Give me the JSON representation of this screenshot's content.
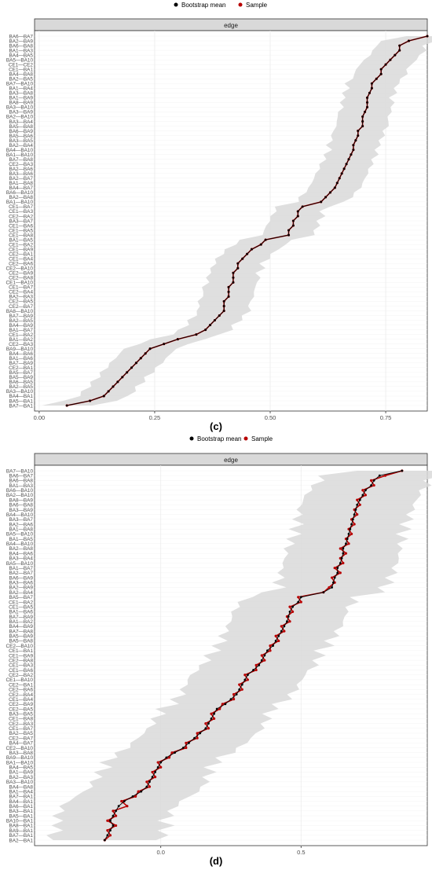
{
  "colors": {
    "bootstrap_mean": "#000000",
    "sample": "#b80000",
    "ribbon": "#d9d9d9",
    "strip": "#d9d9d9",
    "grid_major": "#ebebeb",
    "grid_minor": "#f3f3f3",
    "axis_text": "#4d4d4d"
  },
  "panels": [
    {
      "label": "(c)",
      "legend": {
        "bootstrap_label": "Bootstrap mean",
        "sample_label": "Sample"
      },
      "strip_label": "edge",
      "x_ticks": [
        "0.00",
        "0.25",
        "0.50",
        "0.75"
      ]
    },
    {
      "label": "(d)",
      "legend": {
        "bootstrap_label": "Bootstrap mean",
        "sample_label": "Sample"
      },
      "strip_label": "edge",
      "x_ticks": [
        "0.0",
        "0.5"
      ]
    }
  ],
  "chart_data": [
    {
      "type": "line",
      "facet": "edge",
      "legend_position": "top",
      "xlim": [
        -0.01,
        0.84
      ],
      "x_tick_values": [
        0,
        0.25,
        0.5,
        0.75
      ],
      "y_categories": [
        "BA6—BA7",
        "BA2—BA9",
        "BA6—BA8",
        "BA1—BA3",
        "BA4—BA5",
        "BA5—BA10",
        "CE1—CE2",
        "CE1—BA1",
        "BA4—BA8",
        "BA2—BA5",
        "BA7—BA10",
        "BA1—BA4",
        "BA3—BA8",
        "BA1—BA9",
        "BA8—BA9",
        "BA3—BA10",
        "BA3—BA9",
        "BA2—BA10",
        "BA3—BA4",
        "BA5—BA8",
        "BA6—BA9",
        "BA5—BA6",
        "BA3—BA5",
        "BA2—BA4",
        "BA4—BA10",
        "BA1—BA10",
        "BA7—BA8",
        "CE2—BA3",
        "BA2—BA6",
        "BA3—BA6",
        "BA2—BA7",
        "BA1—BA8",
        "BA4—BA7",
        "BA6—BA10",
        "BA2—BA8",
        "BA1—BA10",
        "CE1—BA7",
        "CE1—BA3",
        "CE2—BA2",
        "BA3—BA7",
        "CE1—BA6",
        "CE1—BA5",
        "CE1—BA8",
        "BA1—BA5",
        "CE1—BA2",
        "CE1—BA9",
        "CE2—BA1",
        "CE1—BA4",
        "CE2—BA6",
        "CE2—BA10",
        "CE2—BA9",
        "CE2—BA8",
        "CE1—BA10",
        "CE1—BA7",
        "CE2—BA4",
        "BA2—BA3",
        "CE2—BA5",
        "CE2—BA7",
        "BA8—BA10",
        "BA7—BA9",
        "BA2—BA5",
        "BA4—BA9",
        "BA1—BA7",
        "CE1—BA2",
        "BA1—BA2",
        "CE2—BA3",
        "BA9—BA10",
        "BA4—BA6",
        "BA1—BA6",
        "BA7—BA9",
        "CE2—BA1",
        "BA5—BA7",
        "BA5—BA9",
        "BA6—BA5",
        "BA2—BA5",
        "BA3—BA10",
        "BA4—BA1",
        "BA5—BA1",
        "BA7—BA1"
      ],
      "series": [
        {
          "name": "Bootstrap mean",
          "values": [
            0.84,
            0.8,
            0.78,
            0.78,
            0.77,
            0.76,
            0.75,
            0.74,
            0.74,
            0.73,
            0.72,
            0.72,
            0.715,
            0.71,
            0.71,
            0.71,
            0.705,
            0.7,
            0.7,
            0.7,
            0.69,
            0.69,
            0.685,
            0.68,
            0.68,
            0.675,
            0.67,
            0.665,
            0.66,
            0.655,
            0.65,
            0.645,
            0.64,
            0.63,
            0.62,
            0.61,
            0.57,
            0.56,
            0.56,
            0.55,
            0.55,
            0.54,
            0.54,
            0.49,
            0.48,
            0.46,
            0.45,
            0.44,
            0.43,
            0.43,
            0.42,
            0.42,
            0.42,
            0.41,
            0.41,
            0.41,
            0.4,
            0.4,
            0.4,
            0.39,
            0.38,
            0.37,
            0.36,
            0.34,
            0.3,
            0.27,
            0.24,
            0.23,
            0.22,
            0.21,
            0.2,
            0.19,
            0.18,
            0.17,
            0.16,
            0.15,
            0.14,
            0.11,
            0.06
          ]
        },
        {
          "name": "Sample",
          "values": [
            0.84,
            0.8,
            0.78,
            0.78,
            0.77,
            0.76,
            0.75,
            0.74,
            0.74,
            0.73,
            0.72,
            0.72,
            0.715,
            0.71,
            0.71,
            0.71,
            0.705,
            0.7,
            0.7,
            0.7,
            0.69,
            0.69,
            0.685,
            0.68,
            0.68,
            0.675,
            0.67,
            0.665,
            0.66,
            0.655,
            0.65,
            0.645,
            0.64,
            0.63,
            0.62,
            0.61,
            0.57,
            0.56,
            0.56,
            0.55,
            0.55,
            0.54,
            0.54,
            0.49,
            0.48,
            0.46,
            0.45,
            0.44,
            0.43,
            0.43,
            0.42,
            0.42,
            0.42,
            0.41,
            0.41,
            0.41,
            0.4,
            0.4,
            0.4,
            0.39,
            0.38,
            0.37,
            0.36,
            0.34,
            0.3,
            0.27,
            0.24,
            0.23,
            0.22,
            0.21,
            0.2,
            0.19,
            0.18,
            0.17,
            0.16,
            0.15,
            0.14,
            0.11,
            0.06
          ]
        }
      ]
    },
    {
      "type": "line",
      "facet": "edge",
      "legend_position": "top",
      "xlim": [
        -0.45,
        0.95
      ],
      "x_tick_values": [
        0,
        0.5
      ],
      "y_categories": [
        "BA7—BA10",
        "BA6—BA7",
        "BA6—BA8",
        "BA1—BA3",
        "BA6—BA10",
        "BA2—BA10",
        "BA8—BA9",
        "BA6—BA8",
        "BA3—BA9",
        "BA4—BA10",
        "BA3—BA7",
        "BA2—BA6",
        "BA1—BA8",
        "BA5—BA10",
        "BA1—BA5",
        "BA4—BA10",
        "BA2—BA8",
        "BA4—BA6",
        "BA3—BA4",
        "BA5—BA10",
        "BA1—BA7",
        "BA2—BA7",
        "BA6—BA9",
        "BA3—BA6",
        "BA2—BA9",
        "BA2—BA4",
        "BA5—BA7",
        "CE1—BA2",
        "CE1—BA5",
        "BA1—BA6",
        "BA7—BA9",
        "BA1—BA2",
        "BA4—BA9",
        "BA7—BA8",
        "BA5—BA9",
        "BA5—BA8",
        "CE2—BA10",
        "CE1—BA1",
        "CE1—BA9",
        "CE2—BA8",
        "CE1—BA3",
        "CE1—BA6",
        "CE2—BA2",
        "CE1—BA10",
        "CE2—BA1",
        "CE2—BA6",
        "CE2—BA4",
        "CE1—BA4",
        "CE2—BA9",
        "CE2—BA5",
        "BA3—BA5",
        "CE1—BA8",
        "CE2—BA3",
        "CE1—BA7",
        "BA2—BA5",
        "CE2—BA7",
        "BA4—BA7",
        "CE2—BA10",
        "BA3—BA8",
        "BA9—BA10",
        "BA1—BA10",
        "BA4—BA5",
        "BA1—BA9",
        "BA2—BA3",
        "BA3—BA10",
        "BA4—BA8",
        "BA1—BA4",
        "BA7—BA1",
        "BA4—BA1",
        "BA6—BA1",
        "BA3—BA1",
        "BA5—BA1",
        "BA10—BA1",
        "BA8—BA1",
        "BA9—BA1",
        "BA7—BA1",
        "BA2—BA1"
      ],
      "series": [
        {
          "name": "Bootstrap mean",
          "values": [
            0.86,
            0.78,
            0.76,
            0.75,
            0.73,
            0.72,
            0.71,
            0.7,
            0.695,
            0.69,
            0.685,
            0.68,
            0.675,
            0.67,
            0.665,
            0.66,
            0.65,
            0.65,
            0.645,
            0.64,
            0.63,
            0.63,
            0.62,
            0.615,
            0.61,
            0.58,
            0.5,
            0.49,
            0.47,
            0.46,
            0.455,
            0.45,
            0.44,
            0.43,
            0.42,
            0.41,
            0.4,
            0.38,
            0.37,
            0.36,
            0.35,
            0.33,
            0.31,
            0.3,
            0.29,
            0.28,
            0.27,
            0.25,
            0.23,
            0.2,
            0.19,
            0.18,
            0.17,
            0.16,
            0.14,
            0.12,
            0.1,
            0.08,
            0.05,
            0.02,
            0.0,
            -0.01,
            -0.02,
            -0.03,
            -0.04,
            -0.05,
            -0.07,
            -0.1,
            -0.13,
            -0.15,
            -0.16,
            -0.17,
            -0.18,
            -0.17,
            -0.18,
            -0.19,
            -0.2
          ]
        },
        {
          "name": "Sample",
          "values": [
            0.86,
            0.8,
            0.75,
            0.76,
            0.72,
            0.73,
            0.7,
            0.71,
            0.69,
            0.7,
            0.68,
            0.69,
            0.67,
            0.68,
            0.66,
            0.67,
            0.64,
            0.66,
            0.64,
            0.65,
            0.62,
            0.64,
            0.61,
            0.62,
            0.6,
            0.58,
            0.49,
            0.5,
            0.46,
            0.47,
            0.45,
            0.46,
            0.43,
            0.44,
            0.41,
            0.42,
            0.39,
            0.39,
            0.36,
            0.37,
            0.34,
            0.34,
            0.3,
            0.31,
            0.28,
            0.29,
            0.26,
            0.26,
            0.22,
            0.21,
            0.18,
            0.19,
            0.16,
            0.17,
            0.13,
            0.13,
            0.09,
            0.09,
            0.04,
            0.03,
            -0.01,
            0.0,
            -0.03,
            -0.02,
            -0.05,
            -0.04,
            -0.08,
            -0.09,
            -0.14,
            -0.12,
            -0.17,
            -0.16,
            -0.19,
            -0.16,
            -0.19,
            -0.18,
            -0.2
          ]
        }
      ]
    }
  ]
}
